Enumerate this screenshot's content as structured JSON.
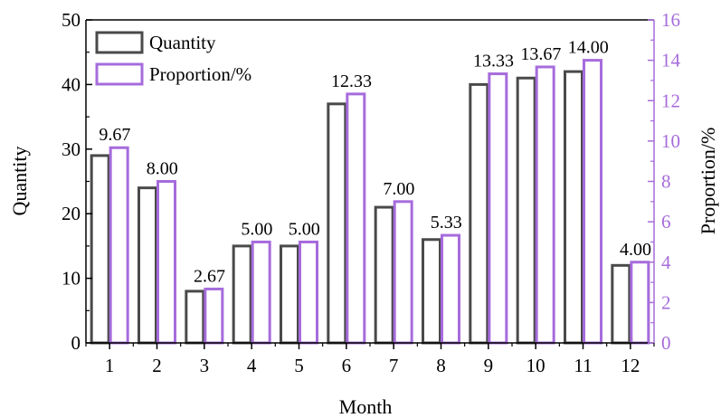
{
  "chart_data": {
    "type": "bar",
    "xlabel": "Month",
    "categories": [
      "1",
      "2",
      "3",
      "4",
      "5",
      "6",
      "7",
      "8",
      "9",
      "10",
      "11",
      "12"
    ],
    "series": [
      {
        "name": "Quantity",
        "axis": "left",
        "values": [
          29,
          24,
          8,
          15,
          15,
          37,
          21,
          16,
          40,
          41,
          42,
          12
        ],
        "stroke": "#4a4a4a"
      },
      {
        "name": "Proportion/%",
        "axis": "right",
        "values": [
          9.67,
          8.0,
          2.67,
          5.0,
          5.0,
          12.33,
          7.0,
          5.33,
          13.33,
          13.67,
          14.0,
          4.0
        ],
        "data_labels": [
          "9.67",
          "8.00",
          "2.67",
          "5.00",
          "5.00",
          "12.33",
          "7.00",
          "5.33",
          "13.33",
          "13.67",
          "14.00",
          "4.00"
        ],
        "stroke": "#a66cdc"
      }
    ],
    "y_left": {
      "label": "Quantity",
      "ylim": [
        0,
        50
      ],
      "ticks": [
        "0",
        "10",
        "20",
        "30",
        "40",
        "50"
      ],
      "color": "#000000"
    },
    "y_right": {
      "label": "Proportion/%",
      "ylim": [
        0,
        16
      ],
      "ticks": [
        "0",
        "2",
        "4",
        "6",
        "8",
        "10",
        "12",
        "14",
        "16"
      ],
      "color": "#a66cdc"
    },
    "legend": {
      "position": "top-left"
    },
    "grid": false
  }
}
